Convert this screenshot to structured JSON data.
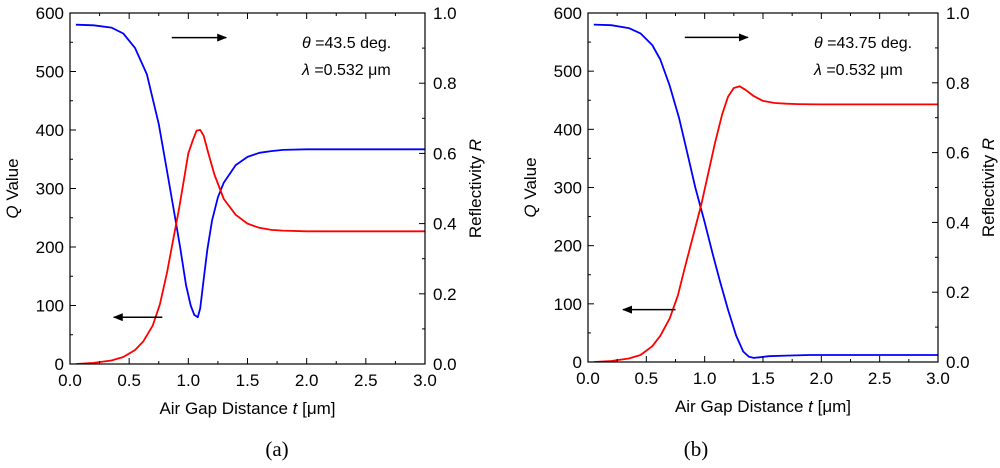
{
  "chart_data": [
    {
      "type": "line",
      "panel_label": "(a)",
      "xlabel": "Air Gap Distance ",
      "xlabel_var": "t",
      "xlabel_unit": " [μm]",
      "ylabel_left_var": "Q",
      "ylabel_left": " Value",
      "ylabel_right": "Reflectivity ",
      "ylabel_right_var": "R",
      "xlim": [
        0.0,
        3.0
      ],
      "ylim_left": [
        0,
        600
      ],
      "ylim_right": [
        0.0,
        1.0
      ],
      "x_ticks": [
        "0.0",
        "0.5",
        "1.0",
        "1.5",
        "2.0",
        "2.5",
        "3.0"
      ],
      "y_left_ticks": [
        "0",
        "100",
        "200",
        "300",
        "400",
        "500",
        "600"
      ],
      "y_right_ticks": [
        "0.0",
        "0.2",
        "0.4",
        "0.6",
        "0.8",
        "1.0"
      ],
      "annotation_theta_sym": "θ",
      "annotation_theta": " =43.5 deg.",
      "annotation_lambda_sym": "λ",
      "annotation_lambda": " =0.532 μm",
      "arrows": [
        {
          "direction": "right",
          "axis": "right",
          "x_from": 0.86,
          "x_to": 1.32,
          "y": 0.93
        },
        {
          "direction": "left",
          "axis": "left",
          "x_from": 0.78,
          "x_to": 0.37,
          "y": 80
        }
      ],
      "series": [
        {
          "name": "Q Value",
          "axis": "left",
          "color": "#0000ff",
          "x": [
            0.05,
            0.2,
            0.35,
            0.45,
            0.55,
            0.65,
            0.75,
            0.82,
            0.88,
            0.93,
            0.98,
            1.02,
            1.05,
            1.08,
            1.1,
            1.13,
            1.16,
            1.2,
            1.25,
            1.3,
            1.4,
            1.5,
            1.6,
            1.7,
            1.8,
            2.0,
            2.2,
            2.5,
            3.0
          ],
          "values": [
            580,
            579,
            575,
            565,
            540,
            495,
            410,
            330,
            260,
            200,
            135,
            100,
            84,
            80,
            95,
            145,
            195,
            245,
            285,
            310,
            340,
            354,
            361,
            364,
            366,
            367,
            367,
            367,
            367
          ]
        },
        {
          "name": "Reflectivity R",
          "axis": "right",
          "color": "#ff0000",
          "x": [
            0.05,
            0.2,
            0.35,
            0.45,
            0.55,
            0.62,
            0.7,
            0.76,
            0.82,
            0.87,
            0.92,
            0.97,
            1.0,
            1.04,
            1.07,
            1.1,
            1.13,
            1.17,
            1.22,
            1.3,
            1.4,
            1.5,
            1.6,
            1.7,
            1.8,
            2.0,
            2.2,
            2.5,
            3.0
          ],
          "values": [
            0.0,
            0.003,
            0.01,
            0.02,
            0.04,
            0.065,
            0.11,
            0.17,
            0.26,
            0.35,
            0.44,
            0.54,
            0.6,
            0.64,
            0.665,
            0.667,
            0.65,
            0.6,
            0.54,
            0.47,
            0.425,
            0.4,
            0.388,
            0.382,
            0.38,
            0.378,
            0.378,
            0.378,
            0.378
          ]
        }
      ]
    },
    {
      "type": "line",
      "panel_label": "(b)",
      "xlabel": "Air Gap Distance ",
      "xlabel_var": "t",
      "xlabel_unit": " [μm]",
      "ylabel_left_var": "Q",
      "ylabel_left": " Value",
      "ylabel_right": "Reflectivity ",
      "ylabel_right_var": "R",
      "xlim": [
        0.0,
        3.0
      ],
      "ylim_left": [
        0,
        600
      ],
      "ylim_right": [
        0.0,
        1.0
      ],
      "x_ticks": [
        "0.0",
        "0.5",
        "1.0",
        "1.5",
        "2.0",
        "2.5",
        "3.0"
      ],
      "y_left_ticks": [
        "0",
        "100",
        "200",
        "300",
        "400",
        "500",
        "600"
      ],
      "y_right_ticks": [
        "0.0",
        "0.2",
        "0.4",
        "0.6",
        "0.8",
        "1.0"
      ],
      "annotation_theta_sym": "θ",
      "annotation_theta": " =43.75 deg.",
      "annotation_lambda_sym": "λ",
      "annotation_lambda": " =0.532 μm",
      "arrows": [
        {
          "direction": "right",
          "axis": "right",
          "x_from": 0.83,
          "x_to": 1.37,
          "y": 0.93
        },
        {
          "direction": "left",
          "axis": "left",
          "x_from": 0.75,
          "x_to": 0.3,
          "y": 90
        }
      ],
      "series": [
        {
          "name": "Q Value",
          "axis": "left",
          "color": "#0000ff",
          "x": [
            0.05,
            0.2,
            0.35,
            0.45,
            0.55,
            0.62,
            0.7,
            0.78,
            0.85,
            0.92,
            1.0,
            1.07,
            1.13,
            1.2,
            1.27,
            1.33,
            1.38,
            1.42,
            1.47,
            1.55,
            1.7,
            1.9,
            2.2,
            2.5,
            3.0
          ],
          "values": [
            580,
            579,
            574,
            565,
            545,
            520,
            475,
            420,
            360,
            300,
            240,
            185,
            140,
            90,
            45,
            18,
            9,
            7,
            8,
            10,
            11,
            12,
            12,
            12,
            12
          ]
        },
        {
          "name": "Reflectivity R",
          "axis": "right",
          "color": "#ff0000",
          "x": [
            0.05,
            0.2,
            0.35,
            0.45,
            0.55,
            0.62,
            0.7,
            0.77,
            0.83,
            0.9,
            0.97,
            1.03,
            1.09,
            1.15,
            1.2,
            1.25,
            1.3,
            1.35,
            1.42,
            1.5,
            1.6,
            1.7,
            1.8,
            2.0,
            2.3,
            2.6,
            3.0
          ],
          "values": [
            0.0,
            0.003,
            0.01,
            0.02,
            0.045,
            0.075,
            0.125,
            0.19,
            0.27,
            0.36,
            0.45,
            0.54,
            0.63,
            0.71,
            0.76,
            0.785,
            0.79,
            0.78,
            0.762,
            0.748,
            0.742,
            0.74,
            0.739,
            0.738,
            0.738,
            0.738,
            0.738
          ]
        }
      ]
    }
  ]
}
